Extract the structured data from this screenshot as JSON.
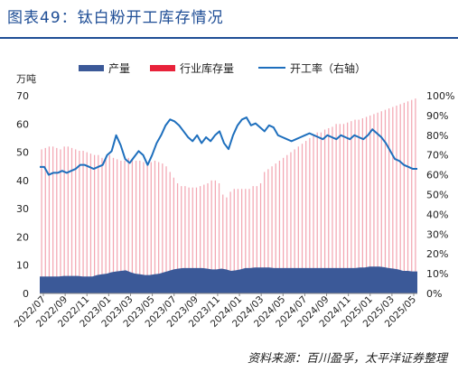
{
  "title": "图表49：钛白粉开工库存情况",
  "source": "资料来源：百川盈孚，太平洋证券整理",
  "chart_data": {
    "type": "bar+line",
    "y_unit_label": "万吨",
    "y_left_lim": [
      0,
      70
    ],
    "y_left_ticks": [
      "0",
      "10",
      "20",
      "30",
      "40",
      "50",
      "60",
      "70"
    ],
    "y_right_lim": [
      0,
      100
    ],
    "y_right_ticks": [
      "0%",
      "10%",
      "20%",
      "30%",
      "40%",
      "50%",
      "60%",
      "70%",
      "80%",
      "90%",
      "100%"
    ],
    "x_ticks": [
      "2022/07",
      "2022/09",
      "2022/11",
      "2023/01",
      "2023/03",
      "2023/05",
      "2023/07",
      "2023/09",
      "2023/11",
      "2024/01",
      "2024/03",
      "2024/05",
      "2024/07",
      "2024/09",
      "2024/11",
      "2025/01",
      "2025/03",
      "2025/05"
    ],
    "legend": [
      "产量",
      "行业库存量",
      "开工率（右轴）"
    ],
    "colors": {
      "production": "#3b5998",
      "inventory": "#e8223a",
      "utilization": "#1e6fbd"
    },
    "grid": false,
    "series": [
      {
        "name": "产量",
        "kind": "area",
        "axis": "left",
        "values": [
          6.0,
          6.0,
          6.0,
          6.0,
          6.0,
          6.2,
          6.2,
          6.2,
          6.2,
          6.0,
          6.0,
          6.0,
          6.5,
          6.8,
          7.0,
          7.5,
          7.8,
          8.0,
          8.2,
          7.5,
          7.0,
          6.8,
          6.5,
          6.5,
          6.8,
          7.0,
          7.5,
          8.0,
          8.5,
          8.8,
          9.0,
          9.0,
          9.0,
          9.0,
          9.0,
          8.8,
          8.5,
          8.5,
          8.8,
          8.5,
          8.0,
          8.2,
          8.5,
          9.0,
          9.0,
          9.2,
          9.2,
          9.2,
          9.2,
          9.0,
          9.0,
          9.0,
          9.0,
          9.0,
          9.0,
          9.0,
          9.0,
          9.0,
          9.0,
          9.0,
          9.0,
          9.0,
          9.0,
          9.0,
          9.0,
          9.0,
          9.0,
          9.2,
          9.2,
          9.5,
          9.5,
          9.5,
          9.3,
          9.0,
          8.8,
          8.5,
          8.0,
          8.0,
          7.8,
          7.8
        ]
      },
      {
        "name": "行业库存量",
        "kind": "bar",
        "axis": "left",
        "values": [
          51,
          51.5,
          52,
          52,
          51.5,
          51,
          52,
          52,
          51.5,
          51,
          50.5,
          50.5,
          50,
          49.5,
          49,
          49,
          48,
          48.5,
          49,
          48,
          47.5,
          47,
          47,
          48,
          47.5,
          47,
          47,
          46.5,
          46,
          46.5,
          47,
          46.5,
          46,
          45,
          43,
          41,
          39,
          38,
          38,
          37.5,
          37.5,
          37.5,
          38,
          38.5,
          39,
          40,
          40,
          39,
          35,
          34,
          36,
          37,
          37,
          37,
          37,
          37,
          38,
          38,
          39,
          43,
          44,
          45,
          46,
          47,
          48,
          49,
          50,
          51,
          52,
          53,
          54,
          55,
          56,
          57,
          57,
          58,
          58.5,
          59,
          60,
          60,
          60,
          60.5,
          61,
          61.5,
          61.5,
          62,
          62.5,
          63,
          63.5,
          64,
          64.5,
          65,
          65.5,
          66,
          66.5,
          67,
          67.5,
          68,
          68.5,
          69
        ]
      },
      {
        "name": "开工率（右轴）",
        "kind": "line",
        "axis": "right",
        "values": [
          64,
          64,
          60,
          61,
          61,
          62,
          61,
          62,
          63,
          65,
          65,
          64,
          63,
          64,
          65,
          70,
          72,
          80,
          75,
          68,
          66,
          69,
          72,
          70,
          65,
          70,
          76,
          80,
          85,
          88,
          87,
          85,
          82,
          79,
          77,
          80,
          76,
          79,
          77,
          80,
          82,
          76,
          73,
          80,
          85,
          88,
          89,
          85,
          86,
          84,
          82,
          85,
          84,
          80,
          79,
          78,
          77,
          78,
          79,
          80,
          81,
          80,
          79,
          78,
          80,
          79,
          78,
          80,
          79,
          78,
          80,
          79,
          78,
          80,
          83,
          81,
          79,
          76,
          72,
          68,
          67,
          65,
          64,
          63,
          63
        ]
      }
    ]
  }
}
